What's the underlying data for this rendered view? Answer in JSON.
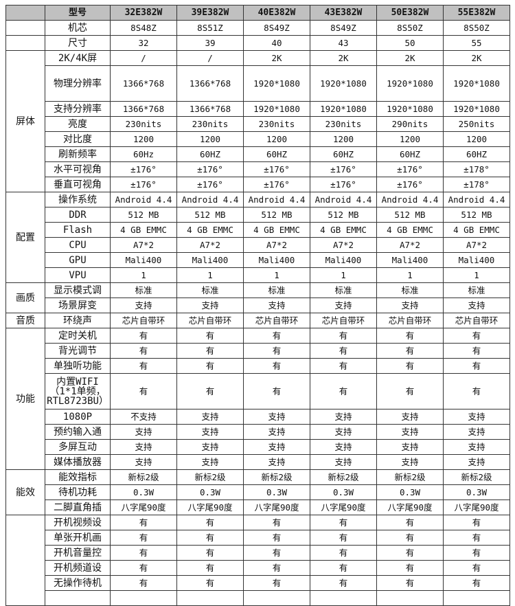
{
  "header": {
    "label": "型号",
    "models": [
      "32E382W",
      "39E382W",
      "40E382W",
      "43E382W",
      "50E382W",
      "55E382W"
    ]
  },
  "groups": [
    {
      "label": "",
      "rows": [
        {
          "label": "机芯",
          "values": [
            "8S48Z",
            "8S51Z",
            "8S49Z",
            "8S49Z",
            "8S50Z",
            "8S50Z"
          ]
        }
      ]
    },
    {
      "label": "",
      "rows": [
        {
          "label": "尺寸",
          "values": [
            "32",
            "39",
            "40",
            "43",
            "50",
            "55"
          ]
        }
      ]
    },
    {
      "label": "屏体",
      "rows": [
        {
          "label": "2K/4K屏",
          "values": [
            "/",
            "/",
            "2K",
            "2K",
            "2K",
            "2K"
          ]
        },
        {
          "label": "物理分辨率",
          "tall": true,
          "values": [
            "1366*768",
            "1366*768",
            "1920*1080",
            "1920*1080",
            "1920*1080",
            "1920*1080"
          ]
        },
        {
          "label": "支持分辨率",
          "values": [
            "1366*768",
            "1366*768",
            "1920*1080",
            "1920*1080",
            "1920*1080",
            "1920*1080"
          ]
        },
        {
          "label": "亮度",
          "values": [
            "230nits",
            "230nits",
            "230nits",
            "230nits",
            "290nits",
            "250nits"
          ]
        },
        {
          "label": "对比度",
          "values": [
            "1200",
            "1200",
            "1200",
            "1200",
            "1200",
            "1200"
          ]
        },
        {
          "label": "刷新频率",
          "values": [
            "60Hz",
            "60HZ",
            "60HZ",
            "60HZ",
            "60HZ",
            "60HZ"
          ]
        },
        {
          "label": "水平可视角",
          "values": [
            "±176°",
            "±176°",
            "±176°",
            "±176°",
            "±176°",
            "±178°"
          ]
        },
        {
          "label": "垂直可视角",
          "values": [
            "±176°",
            "±176°",
            "±176°",
            "±176°",
            "±176°",
            "±178°"
          ]
        }
      ]
    },
    {
      "label": "配置",
      "rows": [
        {
          "label": "操作系统",
          "values": [
            "Android 4.4",
            "Android 4.4",
            "Android 4.4",
            "Android 4.4",
            "Android 4.4",
            "Android 4.4"
          ]
        },
        {
          "label": "DDR",
          "values": [
            "512 MB",
            "512 MB",
            "512 MB",
            "512 MB",
            "512 MB",
            "512 MB"
          ]
        },
        {
          "label": "Flash",
          "values": [
            "4 GB EMMC",
            "4 GB EMMC",
            "4 GB EMMC",
            "4 GB EMMC",
            "4 GB EMMC",
            "4 GB EMMC"
          ]
        },
        {
          "label": "CPU",
          "values": [
            "A7*2",
            "A7*2",
            "A7*2",
            "A7*2",
            "A7*2",
            "A7*2"
          ]
        },
        {
          "label": "GPU",
          "values": [
            "Mali400",
            "Mali400",
            "Mali400",
            "Mali400",
            "Mali400",
            "Mali400"
          ]
        },
        {
          "label": "VPU",
          "values": [
            "1",
            "1",
            "1",
            "1",
            "1",
            "1"
          ]
        }
      ]
    },
    {
      "label": "画质",
      "rows": [
        {
          "label": "显示模式调",
          "values": [
            "标准",
            "标准",
            "标准",
            "标准",
            "标准",
            "标准"
          ]
        },
        {
          "label": "场景屏变",
          "values": [
            "支持",
            "支持",
            "支持",
            "支持",
            "支持",
            "支持"
          ]
        }
      ]
    },
    {
      "label": "音质",
      "rows": [
        {
          "label": "环绕声",
          "values": [
            "芯片自带环",
            "芯片自带环",
            "芯片自带环",
            "芯片自带环",
            "芯片自带环",
            "芯片自带环"
          ]
        }
      ]
    },
    {
      "label": "功能",
      "rows": [
        {
          "label": "定时关机",
          "values": [
            "有",
            "有",
            "有",
            "有",
            "有",
            "有"
          ]
        },
        {
          "label": "背光调节",
          "values": [
            "有",
            "有",
            "有",
            "有",
            "有",
            "有"
          ]
        },
        {
          "label": "单独听功能",
          "values": [
            "有",
            "有",
            "有",
            "有",
            "有",
            "有"
          ]
        },
        {
          "label": "内置WIFI（1*1单频，RTL8723BU）",
          "tall": true,
          "values": [
            "有",
            "有",
            "有",
            "有",
            "有",
            "有"
          ]
        },
        {
          "label": "1080P",
          "values": [
            "不支持",
            "支持",
            "支持",
            "支持",
            "支持",
            "支持"
          ]
        },
        {
          "label": "预约输入通",
          "values": [
            "支持",
            "支持",
            "支持",
            "支持",
            "支持",
            "支持"
          ]
        },
        {
          "label": "多屏互动",
          "values": [
            "支持",
            "支持",
            "支持",
            "支持",
            "支持",
            "支持"
          ]
        },
        {
          "label": "媒体播放器",
          "values": [
            "支持",
            "支持",
            "支持",
            "支持",
            "支持",
            "支持"
          ]
        }
      ]
    },
    {
      "label": "能效",
      "rows": [
        {
          "label": "能效指标",
          "values": [
            "新标2级",
            "新标2级",
            "新标2级",
            "新标2级",
            "新标2级",
            "新标2级"
          ]
        },
        {
          "label": "待机功耗",
          "values": [
            "0.3W",
            "0.3W",
            "0.3W",
            "0.3W",
            "0.3W",
            "0.3W"
          ]
        },
        {
          "label": "二脚直角插",
          "values": [
            "八字尾90度",
            "八字尾90度",
            "八字尾90度",
            "八字尾90度",
            "八字尾90度",
            "八字尾90度"
          ]
        }
      ]
    },
    {
      "label": "",
      "rows": [
        {
          "label": "开机视频设",
          "values": [
            "有",
            "有",
            "有",
            "有",
            "有",
            "有"
          ]
        },
        {
          "label": "单张开机画",
          "values": [
            "有",
            "有",
            "有",
            "有",
            "有",
            "有"
          ]
        },
        {
          "label": "开机音量控",
          "values": [
            "有",
            "有",
            "有",
            "有",
            "有",
            "有"
          ]
        },
        {
          "label": "开机频道设",
          "values": [
            "有",
            "有",
            "有",
            "有",
            "有",
            "有"
          ]
        },
        {
          "label": "无操作待机",
          "values": [
            "有",
            "有",
            "有",
            "有",
            "有",
            "有"
          ]
        },
        {
          "label": "",
          "values": [
            "",
            "",
            "",
            "",
            "",
            ""
          ]
        }
      ]
    }
  ]
}
